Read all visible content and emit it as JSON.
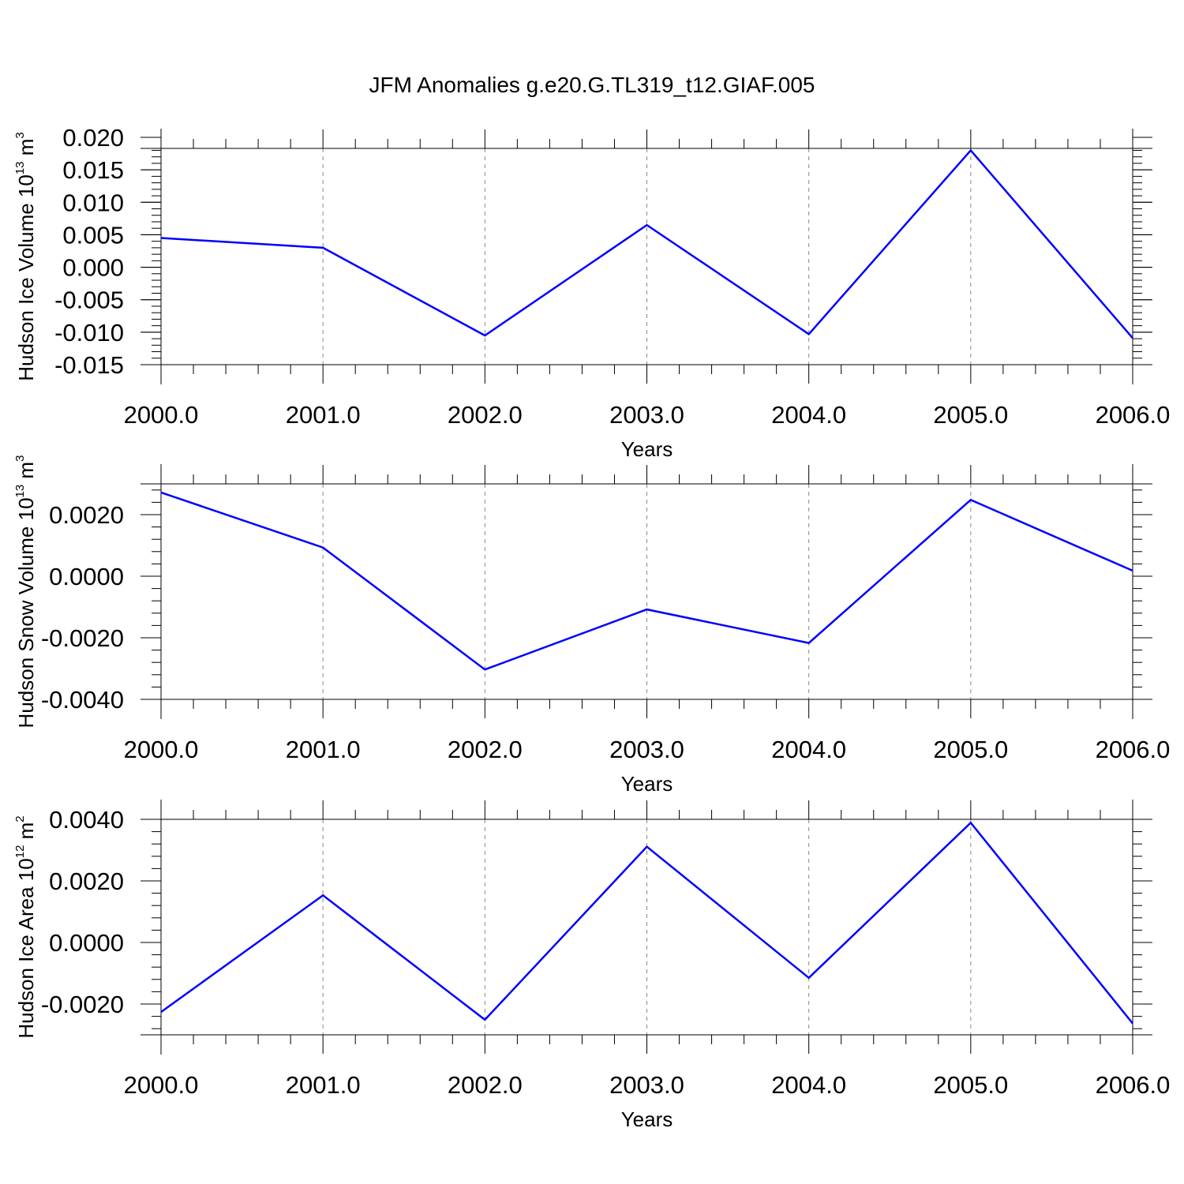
{
  "figure": {
    "title": "JFM Anomalies g.e20.G.TL319_t12.GIAF.005"
  },
  "chart_data": [
    {
      "type": "line",
      "ylabel": {
        "base": "Hudson Ice Volume 10",
        "exp": "13",
        "unit": " m",
        "unit_exp": "3"
      },
      "xlabel": "Years",
      "xlim": [
        2000.0,
        2006.0
      ],
      "ylim": [
        -0.015,
        0.0183
      ],
      "x_ticks": [
        "2000.0",
        "2001.0",
        "2002.0",
        "2003.0",
        "2004.0",
        "2005.0",
        "2006.0"
      ],
      "y_ticks": [
        "0.020",
        "0.015",
        "0.010",
        "0.005",
        "0.000",
        "-0.005",
        "-0.010",
        "-0.015"
      ],
      "grid": "vertical dashed",
      "line_color": "#0000ff",
      "x": [
        2000,
        2001,
        2002,
        2003,
        2004,
        2005,
        2006
      ],
      "values": [
        0.0045,
        0.003,
        -0.0105,
        0.0065,
        -0.0103,
        0.018,
        -0.0109
      ]
    },
    {
      "type": "line",
      "ylabel": {
        "base": "Hudson Snow Volume 10",
        "exp": "13",
        "unit": " m",
        "unit_exp": "3"
      },
      "xlabel": "Years",
      "xlim": [
        2000.0,
        2006.0
      ],
      "ylim": [
        -0.004,
        0.003
      ],
      "x_ticks": [
        "2000.0",
        "2001.0",
        "2002.0",
        "2003.0",
        "2004.0",
        "2005.0",
        "2006.0"
      ],
      "y_ticks": [
        "0.0020",
        "0.0000",
        "-0.0020",
        "-0.0040"
      ],
      "grid": "vertical dashed",
      "line_color": "#0000ff",
      "x": [
        2000,
        2001,
        2002,
        2003,
        2004,
        2005,
        2006
      ],
      "values": [
        0.00272,
        0.00093,
        -0.00303,
        -0.00108,
        -0.00217,
        0.00248,
        0.00018
      ]
    },
    {
      "type": "line",
      "ylabel": {
        "base": "Hudson Ice Area 10",
        "exp": "12",
        "unit": " m",
        "unit_exp": "2"
      },
      "xlabel": "Years",
      "xlim": [
        2000.0,
        2006.0
      ],
      "ylim": [
        -0.003,
        0.004
      ],
      "x_ticks": [
        "2000.0",
        "2001.0",
        "2002.0",
        "2003.0",
        "2004.0",
        "2005.0",
        "2006.0"
      ],
      "y_ticks": [
        "0.0040",
        "0.0020",
        "0.0000",
        "-0.0020"
      ],
      "grid": "vertical dashed",
      "line_color": "#0000ff",
      "x": [
        2000,
        2001,
        2002,
        2003,
        2004,
        2005,
        2006
      ],
      "values": [
        -0.00226,
        0.00153,
        -0.00251,
        0.00311,
        -0.00115,
        0.00389,
        -0.00263
      ]
    }
  ]
}
